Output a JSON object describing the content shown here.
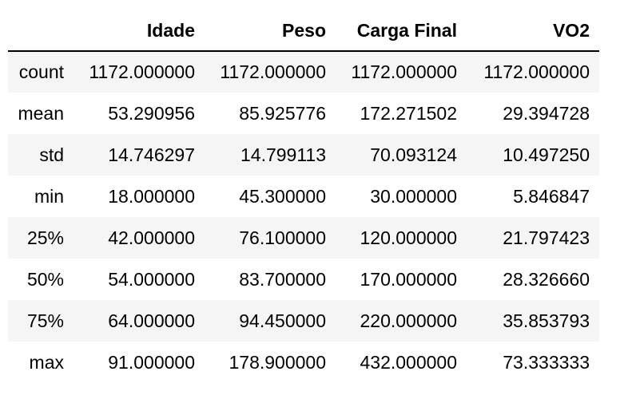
{
  "table": {
    "columns": [
      "",
      "Idade",
      "Peso",
      "Carga Final",
      "VO2"
    ],
    "rows": [
      {
        "index": "count",
        "values": [
          "1172.000000",
          "1172.000000",
          "1172.000000",
          "1172.000000"
        ]
      },
      {
        "index": "mean",
        "values": [
          "53.290956",
          "85.925776",
          "172.271502",
          "29.394728"
        ]
      },
      {
        "index": "std",
        "values": [
          "14.746297",
          "14.799113",
          "70.093124",
          "10.497250"
        ]
      },
      {
        "index": "min",
        "values": [
          "18.000000",
          "45.300000",
          "30.000000",
          "5.846847"
        ]
      },
      {
        "index": "25%",
        "values": [
          "42.000000",
          "76.100000",
          "120.000000",
          "21.797423"
        ]
      },
      {
        "index": "50%",
        "values": [
          "54.000000",
          "83.700000",
          "170.000000",
          "28.326660"
        ]
      },
      {
        "index": "75%",
        "values": [
          "64.000000",
          "94.450000",
          "220.000000",
          "35.853793"
        ]
      },
      {
        "index": "max",
        "values": [
          "91.000000",
          "178.900000",
          "432.000000",
          "73.333333"
        ]
      }
    ]
  }
}
